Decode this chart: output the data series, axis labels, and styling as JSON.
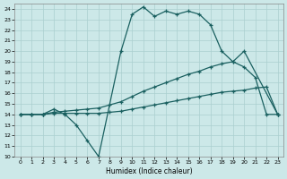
{
  "xlabel": "Humidex (Indice chaleur)",
  "bg_color": "#cce8e8",
  "grid_color": "#aacfcf",
  "line_color": "#1a6060",
  "xlim": [
    -0.5,
    23.5
  ],
  "ylim": [
    10,
    24.5
  ],
  "xtick_labels": [
    "0",
    "1",
    "2",
    "3",
    "4",
    "5",
    "6",
    "7",
    "8",
    "9",
    "10",
    "11",
    "12",
    "13",
    "14",
    "15",
    "16",
    "17",
    "18",
    "19",
    "20",
    "21",
    "22",
    "23"
  ],
  "ytick_labels": [
    "10",
    "11",
    "12",
    "13",
    "14",
    "15",
    "16",
    "17",
    "18",
    "19",
    "20",
    "21",
    "22",
    "23",
    "24"
  ],
  "curve1_x": [
    0,
    1,
    2,
    3,
    4,
    5,
    6,
    7,
    9,
    10,
    11,
    12,
    13,
    14,
    15,
    16,
    17,
    18,
    19,
    20,
    21,
    22,
    23
  ],
  "curve1_y": [
    14,
    14,
    14,
    14.5,
    14,
    13,
    11.5,
    10,
    20,
    23.5,
    24.2,
    23.3,
    23.8,
    23.5,
    23.8,
    23.5,
    22.5,
    20,
    19,
    18.5,
    17.5,
    14,
    14
  ],
  "curve2_x": [
    0,
    1,
    2,
    3,
    4,
    5,
    6,
    7,
    8,
    9,
    10,
    11,
    12,
    13,
    14,
    15,
    16,
    17,
    18,
    19,
    20,
    23
  ],
  "curve2_y": [
    14,
    14,
    14,
    14.2,
    14.3,
    14.4,
    14.5,
    14.6,
    14.9,
    15.2,
    15.7,
    16.2,
    16.6,
    17.0,
    17.4,
    17.8,
    18.1,
    18.5,
    18.8,
    19.0,
    20.0,
    14
  ],
  "curve3_x": [
    0,
    1,
    2,
    3,
    4,
    5,
    6,
    7,
    8,
    9,
    10,
    11,
    12,
    13,
    14,
    15,
    16,
    17,
    18,
    19,
    20,
    21,
    22,
    23
  ],
  "curve3_y": [
    14,
    14,
    14,
    14.1,
    14.1,
    14.1,
    14.1,
    14.1,
    14.2,
    14.3,
    14.5,
    14.7,
    14.9,
    15.1,
    15.3,
    15.5,
    15.7,
    15.9,
    16.1,
    16.2,
    16.3,
    16.5,
    16.6,
    14
  ]
}
